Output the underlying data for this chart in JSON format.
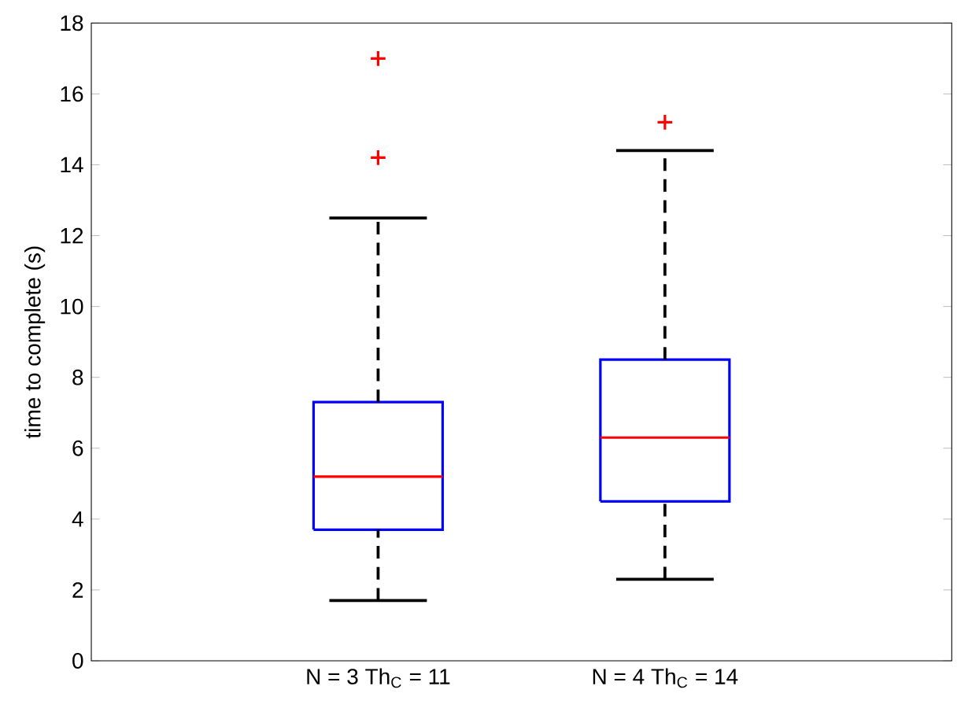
{
  "chart_data": {
    "type": "box",
    "ylabel": "time to complete (s)",
    "categories": [
      "N = 3 Th$_{C}$ = 11",
      "N = 4 Th$_{C}$ = 14"
    ],
    "color": "#0000ff",
    "boxes": [
      {
        "low": 1.7,
        "q1": 3.7,
        "median": 5.2,
        "q3": 7.3,
        "high": 12.5,
        "outliers": [
          14.2,
          17
        ]
      },
      {
        "low": 2.3,
        "q1": 4.5,
        "median": 6.3,
        "q3": 8.5,
        "high": 14.4,
        "outliers": [
          15.2
        ]
      }
    ],
    "ylim": [
      0,
      18
    ],
    "yticks": [
      0,
      2,
      4,
      6,
      8,
      10,
      12,
      14,
      16,
      18
    ],
    "grid": false,
    "marker": "cross"
  }
}
